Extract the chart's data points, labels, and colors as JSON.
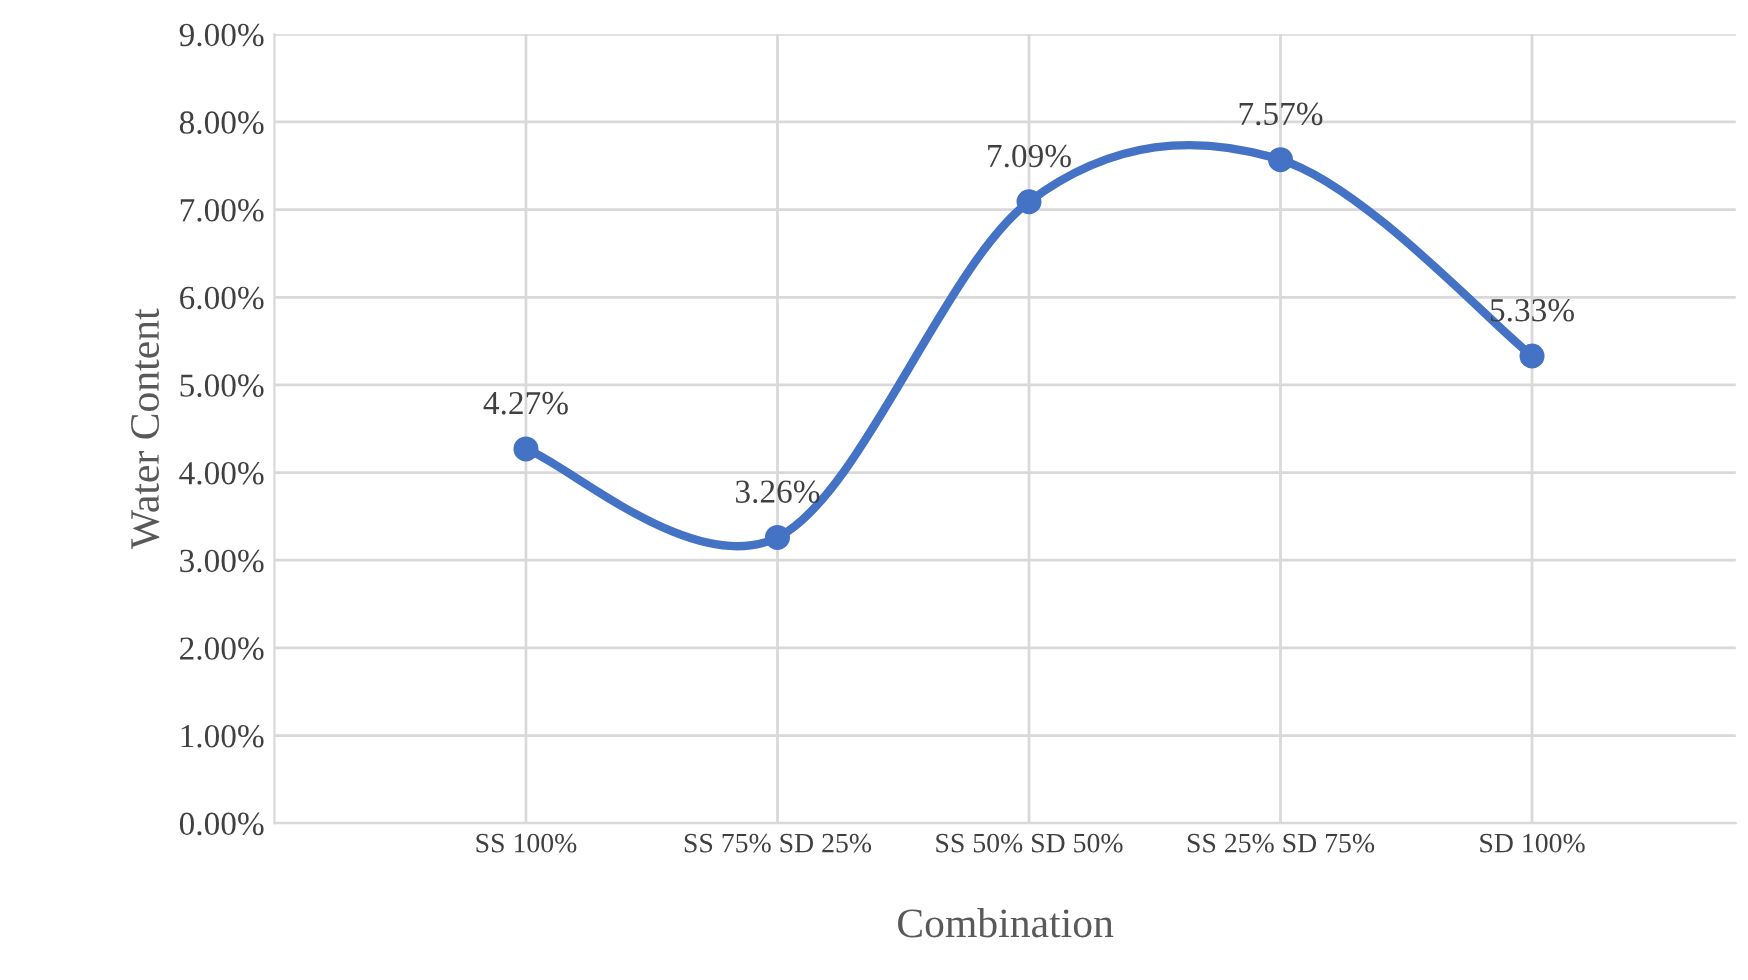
{
  "chart_data": {
    "type": "line",
    "xlabel": "Combination",
    "ylabel": "Water Content",
    "categories": [
      "SS 100%",
      "SS 75% SD 25%",
      "SS 50% SD 50%",
      "SS 25% SD 75%",
      "SD 100%"
    ],
    "series": [
      {
        "color": "#4472c4",
        "values": [
          4.27,
          3.26,
          7.09,
          7.57,
          5.33
        ],
        "value_labels": [
          "4.27%",
          "3.26%",
          "7.09%",
          "7.57%",
          "5.33%"
        ]
      }
    ],
    "ylim": [
      0,
      9
    ],
    "yticks": [
      {
        "value": 0,
        "label": "0.00%"
      },
      {
        "value": 1,
        "label": "1.00%"
      },
      {
        "value": 2,
        "label": "2.00%"
      },
      {
        "value": 3,
        "label": "3.00%"
      },
      {
        "value": 4,
        "label": "4.00%"
      },
      {
        "value": 5,
        "label": "5.00%"
      },
      {
        "value": 6,
        "label": "6.00%"
      },
      {
        "value": 7,
        "label": "7.00%"
      },
      {
        "value": 8,
        "label": "8.00%"
      },
      {
        "value": 9,
        "label": "9.00%"
      }
    ],
    "grid": true,
    "marker": "circle",
    "line_style": "solid"
  }
}
